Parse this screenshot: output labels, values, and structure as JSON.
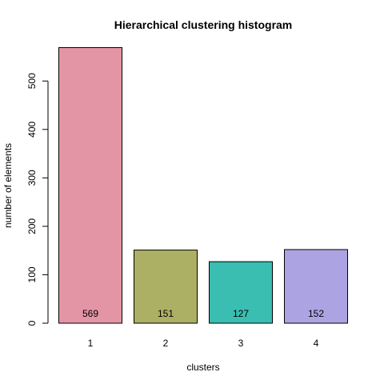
{
  "chart_data": {
    "type": "bar",
    "title": "Hierarchical clustering histogram",
    "xlabel": "clusters",
    "ylabel": "number of elements",
    "categories": [
      "1",
      "2",
      "3",
      "4"
    ],
    "values": [
      569,
      151,
      127,
      152
    ],
    "data_labels": [
      "569",
      "151",
      "127",
      "152"
    ],
    "colors": [
      "#e495a5",
      "#abb065",
      "#39beb1",
      "#aca4e2"
    ],
    "ylim": [
      0,
      569
    ],
    "yticks": [
      0,
      100,
      200,
      300,
      400,
      500
    ],
    "ytick_labels": [
      "0",
      "100",
      "200",
      "300",
      "400",
      "500"
    ],
    "grid": false,
    "legend": "none"
  }
}
